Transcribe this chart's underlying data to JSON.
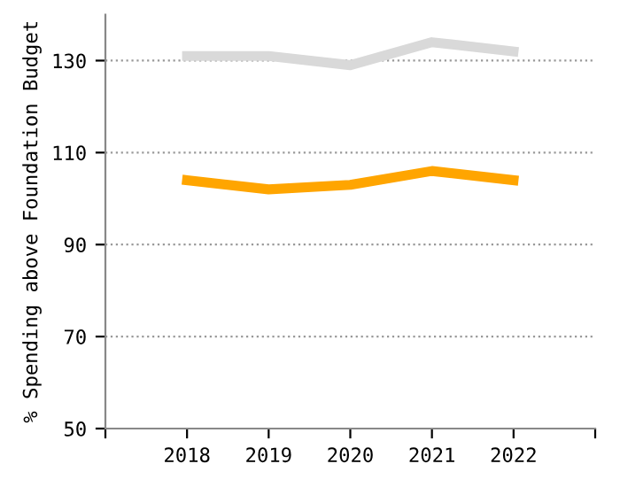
{
  "chart_data": {
    "type": "line",
    "ylabel": "% Spending above Foundation Budget",
    "x": [
      2018,
      2019,
      2020,
      2021,
      2022
    ],
    "series": [
      {
        "color": "#d9d9d9",
        "values": [
          131,
          131,
          129,
          134,
          132
        ]
      },
      {
        "color": "#ffa500",
        "values": [
          104,
          102,
          103,
          106,
          104
        ]
      }
    ],
    "xlim": [
      2017,
      2023
    ],
    "xticks": [
      {
        "value": 2017,
        "label": null
      },
      2018,
      2019,
      2020,
      2021,
      2022,
      {
        "value": 2023,
        "label": null
      }
    ],
    "ylim": [
      50,
      140
    ],
    "yticks": [
      50,
      70,
      90,
      110,
      130
    ],
    "grid": "y",
    "line_style": "solid",
    "marker": "none"
  }
}
